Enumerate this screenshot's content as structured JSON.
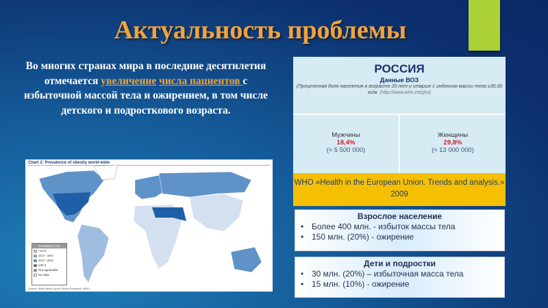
{
  "title": "Актуальность проблемы",
  "intro": {
    "part1": "Во многих странах мира в последние десятилетия отмечается ",
    "hl1": "увеличение",
    "br": " ",
    "hl2": "числа пациентов ",
    "part2": "с избыточной массой тела и ожирением, в том числе детского и подросткового возраста."
  },
  "map": {
    "title": "Chart 2: Prevalence of obesity world-wide",
    "legend_title": "Prevalence (%)",
    "legend": [
      {
        "label": "<10.0",
        "color": "#d3e0f0"
      },
      {
        "label": "10.0 - 19.9",
        "color": "#9fbde0"
      },
      {
        "label": "20.0 - 29.9",
        "color": "#5f93c8"
      },
      {
        "label": "≥30.0",
        "color": "#1f5fa8"
      },
      {
        "label": "Not applicable",
        "color": "#999999"
      },
      {
        "label": "No data",
        "color": "#ffffff"
      }
    ],
    "source": "Source: BofA Merrill Lynch Global Research, WHO"
  },
  "russia": {
    "title": "РОССИЯ",
    "subtitle": "Данные ВОЗ",
    "note": "(Процентная доля населения в возрасте 20 лет и старше с индексом массы тела ≥30.00 кг/м. ",
    "url": "(http://www.who.int/gho)",
    "men": {
      "label": "Мужчины",
      "pct": "18,4%",
      "count": "(≈ 5 500 000)"
    },
    "women": {
      "label": "Женщины",
      "pct": "29,8%",
      "count": "(≈ 13 000 000)"
    },
    "source": "WHO «Health in the European Union. Trends and analysis.» 2009"
  },
  "adults": {
    "heading": "Взрослое население",
    "items": [
      "Более 400 млн.  - избыток массы тела",
      "150 млн. (20%) - ожирение"
    ]
  },
  "children": {
    "heading": "Дети и подростки",
    "items": [
      "30 млн. (20%) – избыточная масса тела",
      "15 млн. (10%) - ожирение"
    ]
  },
  "colors": {
    "accent": "#acd136",
    "title": "#f3a33a",
    "highlight_red": "#d21c2a",
    "yellow": "#f6c002"
  }
}
